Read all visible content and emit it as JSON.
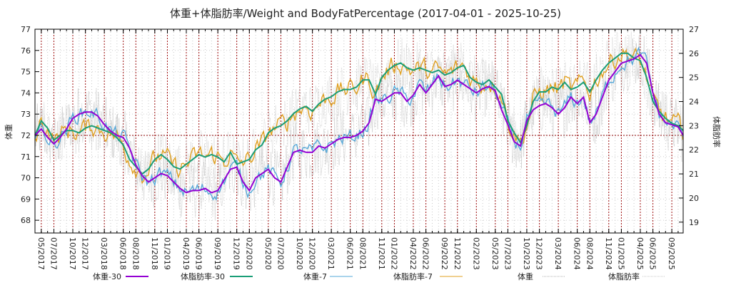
{
  "chart_data": {
    "type": "line",
    "title": "体重+体脂肪率/Weight and BodyFatPercentage (2017-04-01 - 2025-10-25)",
    "date_range": {
      "start": "2017-04-01",
      "end": "2025-10-25"
    },
    "ylabel": "体重",
    "y2label": "体脂肪率",
    "ylim": [
      67.4,
      77
    ],
    "y2lim": [
      18.55,
      27
    ],
    "yticks": [
      68,
      69,
      70,
      71,
      72,
      73,
      74,
      75,
      76,
      77
    ],
    "y2ticks": [
      19,
      20,
      21,
      22,
      23,
      24,
      25,
      26,
      27
    ],
    "reference_line": {
      "axis": "y",
      "value": 72,
      "color": "#8b0000",
      "style": "dotted"
    },
    "grid": true,
    "xticks": [
      "05/2017",
      "07/2017",
      "10/2017",
      "12/2017",
      "03/2018",
      "06/2018",
      "08/2018",
      "11/2018",
      "01/2019",
      "04/2019",
      "06/2019",
      "09/2019",
      "12/2019",
      "02/2020",
      "05/2020",
      "07/2020",
      "10/2020",
      "12/2020",
      "03/2021",
      "06/2021",
      "08/2021",
      "11/2021",
      "01/2022",
      "04/2022",
      "06/2022",
      "09/2022",
      "11/2022",
      "02/2023",
      "05/2023",
      "07/2023",
      "10/2023",
      "12/2023",
      "03/2024",
      "06/2024",
      "08/2024",
      "11/2024",
      "01/2025",
      "04/2025",
      "06/2025",
      "09/2025"
    ],
    "xtick_months": [
      1,
      3,
      6,
      8,
      11,
      14,
      16,
      19,
      21,
      24,
      26,
      29,
      32,
      34,
      37,
      39,
      42,
      44,
      47,
      50,
      52,
      55,
      57,
      60,
      62,
      65,
      67,
      70,
      73,
      75,
      78,
      80,
      83,
      86,
      88,
      91,
      93,
      96,
      98,
      101
    ],
    "x_range_months": [
      0,
      102.8
    ],
    "legend_position": "bottom",
    "series": [
      {
        "name": "体重-30",
        "axis": "y1",
        "color": "#9400d3",
        "width": 2,
        "x": [
          0,
          1,
          2,
          3,
          4,
          5,
          6,
          7,
          8,
          9,
          10,
          11,
          12,
          13,
          14,
          15,
          16,
          17,
          18,
          19,
          20,
          21,
          22,
          23,
          24,
          25,
          26,
          27,
          28,
          29,
          30,
          31,
          32,
          33,
          34,
          35,
          36,
          37,
          38,
          39,
          40,
          41,
          42,
          43,
          44,
          45,
          46,
          47,
          48,
          49,
          50,
          51,
          52,
          53,
          54,
          55,
          56,
          57,
          58,
          59,
          60,
          61,
          62,
          63,
          64,
          65,
          66,
          67,
          68,
          69,
          70,
          71,
          72,
          73,
          74,
          75,
          76,
          77,
          78,
          79,
          80,
          81,
          82,
          83,
          84,
          85,
          86,
          87,
          88,
          89,
          90,
          91,
          92,
          93,
          94,
          95,
          96,
          97,
          98,
          99,
          100,
          101,
          102,
          102.8
        ],
        "values": [
          72.0,
          72.3,
          71.9,
          71.6,
          71.9,
          72.3,
          72.8,
          73.0,
          73.1,
          73.1,
          72.9,
          72.5,
          72.2,
          72.0,
          71.9,
          71.4,
          70.6,
          70.1,
          69.8,
          70.0,
          70.2,
          70.1,
          69.8,
          69.5,
          69.3,
          69.4,
          69.4,
          69.5,
          69.3,
          69.4,
          69.9,
          70.4,
          70.5,
          69.8,
          69.4,
          70.0,
          70.2,
          70.4,
          70.0,
          69.8,
          70.5,
          71.2,
          71.3,
          71.2,
          71.2,
          71.5,
          71.4,
          71.6,
          71.8,
          71.9,
          71.9,
          72.0,
          72.2,
          72.6,
          73.7,
          73.6,
          73.8,
          74.0,
          74.0,
          73.6,
          73.9,
          74.4,
          74.0,
          74.4,
          74.8,
          74.3,
          74.4,
          74.6,
          74.4,
          74.2,
          74.0,
          74.2,
          74.3,
          74.1,
          73.2,
          72.5,
          71.7,
          71.5,
          72.7,
          73.2,
          73.4,
          73.5,
          73.3,
          73.0,
          73.3,
          73.8,
          73.5,
          73.8,
          72.6,
          73.0,
          73.8,
          74.6,
          75.0,
          75.4,
          75.5,
          75.6,
          75.8,
          75.4,
          74.0,
          73.0,
          72.6,
          72.5,
          72.4,
          72.0
        ]
      },
      {
        "name": "体脂肪率-30",
        "axis": "y2",
        "color": "#1a9e77",
        "width": 2,
        "x": [
          0,
          1,
          2,
          3,
          4,
          5,
          6,
          7,
          8,
          9,
          10,
          11,
          12,
          13,
          14,
          15,
          16,
          17,
          18,
          19,
          20,
          21,
          22,
          23,
          24,
          25,
          26,
          27,
          28,
          29,
          30,
          31,
          32,
          33,
          34,
          35,
          36,
          37,
          38,
          39,
          40,
          41,
          42,
          43,
          44,
          45,
          46,
          47,
          48,
          49,
          50,
          51,
          52,
          53,
          54,
          55,
          56,
          57,
          58,
          59,
          60,
          61,
          62,
          63,
          64,
          65,
          66,
          67,
          68,
          69,
          70,
          71,
          72,
          73,
          74,
          75,
          76,
          77,
          78,
          79,
          80,
          81,
          82,
          83,
          84,
          85,
          86,
          87,
          88,
          89,
          90,
          91,
          92,
          93,
          94,
          95,
          96,
          97,
          98,
          99,
          100,
          101,
          102,
          102.8
        ],
        "values": [
          22.6,
          23.2,
          22.9,
          22.4,
          22.6,
          22.8,
          22.8,
          22.7,
          22.9,
          23.0,
          22.9,
          22.8,
          22.7,
          22.5,
          22.2,
          21.6,
          21.3,
          21.0,
          21.2,
          21.6,
          21.8,
          21.6,
          21.3,
          21.2,
          21.4,
          21.6,
          21.8,
          21.7,
          21.8,
          21.7,
          21.5,
          21.9,
          21.4,
          21.5,
          21.6,
          22.0,
          22.2,
          22.7,
          22.9,
          23.0,
          23.2,
          23.5,
          23.7,
          23.8,
          23.6,
          23.9,
          24.1,
          24.2,
          24.4,
          24.5,
          24.5,
          24.6,
          24.9,
          24.9,
          24.3,
          25.0,
          25.3,
          25.5,
          25.6,
          25.4,
          25.3,
          25.4,
          25.3,
          25.2,
          25.3,
          25.1,
          25.2,
          25.4,
          25.5,
          25.0,
          24.8,
          24.7,
          24.9,
          24.6,
          24.3,
          23.2,
          22.7,
          22.3,
          23.0,
          24.0,
          24.4,
          24.4,
          24.6,
          24.5,
          24.8,
          24.5,
          24.6,
          24.8,
          24.4,
          24.9,
          25.3,
          25.6,
          25.8,
          26.0,
          26.0,
          25.8,
          25.7,
          25.0,
          24.0,
          23.6,
          23.3,
          23.1,
          23.0,
          22.8
        ]
      },
      {
        "name": "体重-7",
        "axis": "y1",
        "color": "#56a8d8",
        "width": 1,
        "derived_from": "体重-30 with higher-frequency variation"
      },
      {
        "name": "体脂肪率-7",
        "axis": "y2",
        "color": "#e0a020",
        "width": 1,
        "derived_from": "体脂肪率-30 with higher-frequency variation"
      },
      {
        "name": "体重",
        "axis": "y1",
        "color": "#b0b0b0",
        "width": 1,
        "style": "dotted",
        "derived_from": "daily raw values around 体重-30"
      },
      {
        "name": "体脂肪率",
        "axis": "y2",
        "color": "#c8c8c8",
        "width": 1,
        "style": "dotted",
        "derived_from": "daily raw values around 体脂肪率-30"
      }
    ]
  },
  "legend": {
    "items": [
      {
        "label": "体重-30",
        "color": "#9400d3",
        "style": "solid-thick"
      },
      {
        "label": "体脂肪率-30",
        "color": "#1a9e77",
        "style": "solid-thick"
      },
      {
        "label": "体重-7",
        "color": "#56a8d8",
        "style": "solid"
      },
      {
        "label": "体脂肪率-7",
        "color": "#e0a020",
        "style": "solid"
      },
      {
        "label": "体重",
        "color": "#b0b0b0",
        "style": "dotted"
      },
      {
        "label": "体脂肪率",
        "color": "#c8c8c8",
        "style": "dotted"
      }
    ]
  }
}
